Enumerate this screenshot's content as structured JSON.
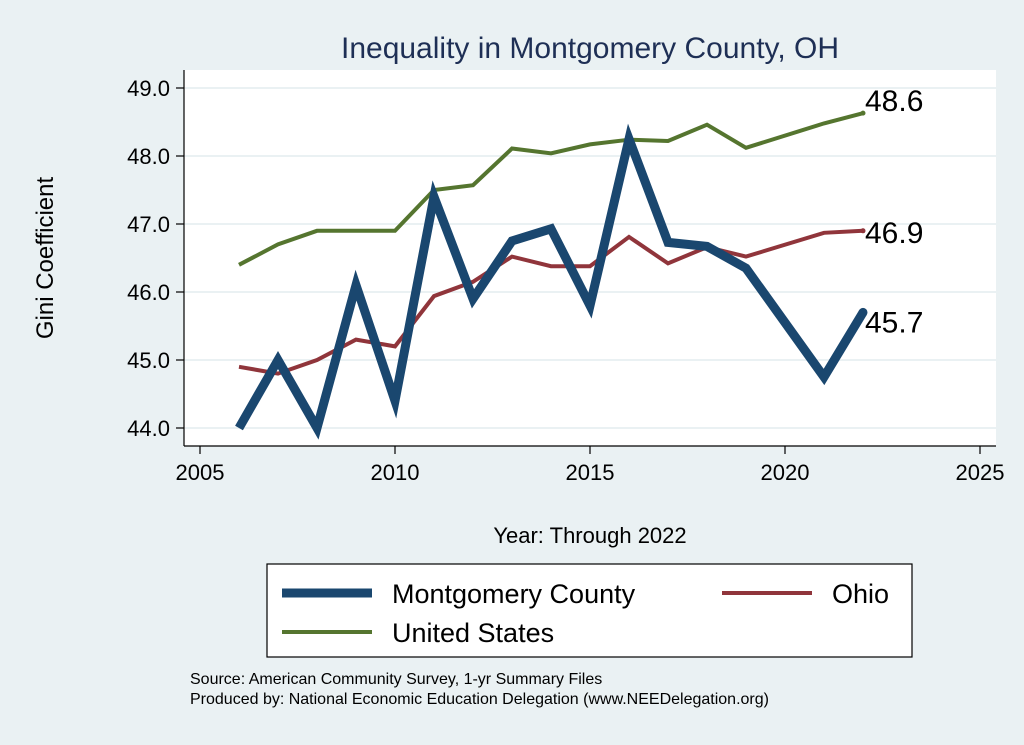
{
  "chart_data": {
    "type": "line",
    "title": "Inequality in Montgomery County, OH",
    "xlabel": "Year: Through 2022",
    "ylabel": "Gini Coefficient",
    "xlim": [
      2005,
      2025
    ],
    "ylim": [
      44.0,
      49.0
    ],
    "x_ticks": [
      "2005",
      "2010",
      "2015",
      "2020",
      "2025"
    ],
    "y_ticks": [
      "44.0",
      "45.0",
      "46.0",
      "47.0",
      "48.0",
      "49.0"
    ],
    "grid": true,
    "legend_position": "bottom",
    "series": [
      {
        "name": "Montgomery County",
        "color": "#1a476f",
        "x": [
          2006,
          2007,
          2008,
          2009,
          2010,
          2011,
          2012,
          2013,
          2014,
          2015,
          2016,
          2017,
          2018,
          2019,
          2021,
          2022
        ],
        "y": [
          44.0,
          45.0,
          44.0,
          46.1,
          44.4,
          47.4,
          45.9,
          46.75,
          46.93,
          45.8,
          48.25,
          46.73,
          46.67,
          46.35,
          44.75,
          45.7
        ],
        "end_label": "45.7"
      },
      {
        "name": "Ohio",
        "color": "#90353b",
        "x": [
          2006,
          2007,
          2008,
          2009,
          2010,
          2011,
          2012,
          2013,
          2014,
          2015,
          2016,
          2017,
          2018,
          2019,
          2021,
          2022
        ],
        "y": [
          44.9,
          44.8,
          45.0,
          45.3,
          45.2,
          45.94,
          46.15,
          46.52,
          46.38,
          46.38,
          46.81,
          46.42,
          46.66,
          46.52,
          46.87,
          46.9
        ],
        "end_label": "46.9"
      },
      {
        "name": "United States",
        "color": "#55752f",
        "x": [
          2006,
          2007,
          2008,
          2009,
          2010,
          2011,
          2012,
          2013,
          2014,
          2015,
          2016,
          2017,
          2018,
          2019,
          2021,
          2022
        ],
        "y": [
          46.4,
          46.7,
          46.9,
          46.9,
          46.9,
          47.5,
          47.57,
          48.11,
          48.04,
          48.17,
          48.24,
          48.22,
          48.46,
          48.12,
          48.48,
          48.63
        ],
        "end_label": "48.6"
      }
    ]
  },
  "source_line1": "Source: American Community Survey, 1-yr Summary Files",
  "source_line2": "Produced by: National Economic Education Delegation (www.NEEDelegation.org)"
}
